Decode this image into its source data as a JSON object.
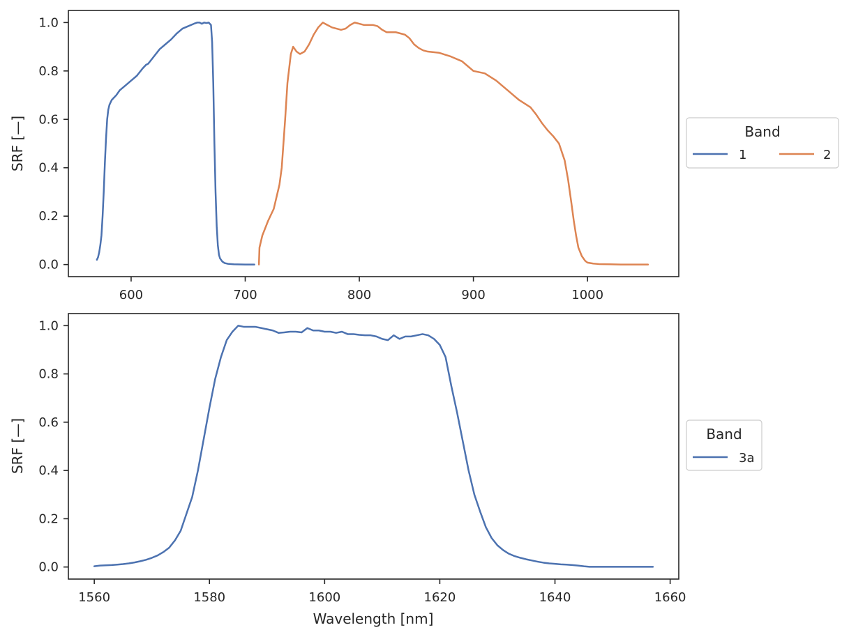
{
  "colors": {
    "band_1": "#4c72b0",
    "band_2": "#dd8452",
    "band_3a": "#4c72b0",
    "axes": "#262626"
  },
  "chart_data": [
    {
      "type": "line",
      "xlabel": "",
      "ylabel": "SRF [—]",
      "xlim": [
        545,
        1080
      ],
      "ylim": [
        -0.05,
        1.05
      ],
      "xticks": [
        600,
        700,
        800,
        900,
        1000
      ],
      "yticks": [
        0.0,
        0.2,
        0.4,
        0.6,
        0.8,
        1.0
      ],
      "legend": {
        "title": "Band",
        "placement": "right",
        "columns": 2
      },
      "grid": false,
      "series": [
        {
          "name": "1",
          "color": "#4c72b0",
          "x": [
            570,
            571,
            572,
            573,
            574,
            575,
            576,
            577,
            578,
            579,
            580,
            581,
            582,
            583,
            584,
            585,
            587,
            590,
            595,
            600,
            605,
            610,
            613,
            615,
            620,
            625,
            630,
            635,
            640,
            645,
            650,
            655,
            658,
            660,
            662,
            664,
            666,
            668,
            670,
            671,
            672,
            673,
            674,
            675,
            676,
            677,
            678,
            680,
            682,
            685,
            690,
            700,
            708
          ],
          "y": [
            0.02,
            0.03,
            0.05,
            0.08,
            0.12,
            0.2,
            0.3,
            0.42,
            0.52,
            0.6,
            0.64,
            0.66,
            0.67,
            0.68,
            0.685,
            0.69,
            0.7,
            0.72,
            0.74,
            0.76,
            0.78,
            0.81,
            0.825,
            0.83,
            0.86,
            0.89,
            0.91,
            0.93,
            0.955,
            0.975,
            0.985,
            0.995,
            1.0,
            1.0,
            0.995,
            1.0,
            0.998,
            1.0,
            0.99,
            0.92,
            0.75,
            0.5,
            0.3,
            0.16,
            0.08,
            0.04,
            0.025,
            0.012,
            0.006,
            0.003,
            0.001,
            0.0,
            0.0
          ]
        },
        {
          "name": "2",
          "color": "#dd8452",
          "x": [
            712,
            712.5,
            715,
            720,
            725,
            730,
            732,
            735,
            737,
            740,
            742,
            745,
            748,
            752,
            756,
            760,
            764,
            768,
            772,
            776,
            780,
            784,
            788,
            792,
            796,
            800,
            804,
            808,
            812,
            816,
            820,
            824,
            828,
            832,
            836,
            840,
            844,
            848,
            852,
            856,
            860,
            870,
            880,
            890,
            895,
            900,
            910,
            920,
            930,
            935,
            940,
            945,
            950,
            955,
            960,
            965,
            970,
            975,
            980,
            983,
            986,
            988,
            990,
            992,
            995,
            998,
            1000,
            1005,
            1010,
            1020,
            1030,
            1040,
            1053
          ],
          "y": [
            0.0,
            0.07,
            0.12,
            0.18,
            0.23,
            0.33,
            0.4,
            0.6,
            0.75,
            0.87,
            0.9,
            0.88,
            0.87,
            0.88,
            0.91,
            0.95,
            0.98,
            1.0,
            0.99,
            0.98,
            0.975,
            0.97,
            0.975,
            0.99,
            1.0,
            0.995,
            0.99,
            0.99,
            0.99,
            0.985,
            0.97,
            0.96,
            0.96,
            0.96,
            0.955,
            0.95,
            0.935,
            0.91,
            0.895,
            0.885,
            0.88,
            0.875,
            0.86,
            0.84,
            0.82,
            0.8,
            0.79,
            0.76,
            0.72,
            0.7,
            0.68,
            0.665,
            0.65,
            0.62,
            0.585,
            0.555,
            0.53,
            0.5,
            0.43,
            0.35,
            0.25,
            0.18,
            0.12,
            0.07,
            0.035,
            0.015,
            0.008,
            0.004,
            0.002,
            0.001,
            0.0,
            0.0,
            0.0
          ]
        }
      ]
    },
    {
      "type": "line",
      "xlabel": "Wavelength [nm]",
      "ylabel": "SRF [—]",
      "xlim": [
        1555.5,
        1661.5
      ],
      "ylim": [
        -0.05,
        1.05
      ],
      "xticks": [
        1560,
        1580,
        1600,
        1620,
        1640,
        1660
      ],
      "yticks": [
        0.0,
        0.2,
        0.4,
        0.6,
        0.8,
        1.0
      ],
      "legend": {
        "title": "Band",
        "placement": "right",
        "columns": 1
      },
      "grid": false,
      "series": [
        {
          "name": "3a",
          "color": "#4c72b0",
          "x": [
            1560,
            1561,
            1562,
            1563,
            1564,
            1565,
            1566,
            1567,
            1568,
            1569,
            1570,
            1571,
            1572,
            1573,
            1574,
            1575,
            1576,
            1577,
            1578,
            1579,
            1580,
            1581,
            1582,
            1583,
            1584,
            1585,
            1586,
            1587,
            1588,
            1589,
            1590,
            1591,
            1592,
            1593,
            1594,
            1595,
            1596,
            1597,
            1598,
            1599,
            1600,
            1601,
            1602,
            1603,
            1604,
            1605,
            1606,
            1607,
            1608,
            1609,
            1610,
            1611,
            1612,
            1613,
            1614,
            1615,
            1616,
            1617,
            1618,
            1619,
            1620,
            1621,
            1622,
            1623,
            1624,
            1625,
            1626,
            1627,
            1628,
            1629,
            1630,
            1631,
            1632,
            1633,
            1634,
            1635,
            1636,
            1637,
            1638,
            1639,
            1640,
            1641,
            1642,
            1643,
            1644,
            1645,
            1646,
            1647,
            1648,
            1649,
            1650,
            1651,
            1652,
            1653,
            1654,
            1655,
            1656,
            1657
          ],
          "y": [
            0.003,
            0.006,
            0.007,
            0.008,
            0.01,
            0.012,
            0.015,
            0.019,
            0.024,
            0.03,
            0.038,
            0.048,
            0.062,
            0.08,
            0.11,
            0.15,
            0.22,
            0.29,
            0.4,
            0.53,
            0.66,
            0.78,
            0.87,
            0.94,
            0.975,
            1.0,
            0.995,
            0.995,
            0.995,
            0.99,
            0.985,
            0.98,
            0.97,
            0.972,
            0.975,
            0.975,
            0.972,
            0.99,
            0.98,
            0.98,
            0.975,
            0.975,
            0.97,
            0.975,
            0.965,
            0.965,
            0.962,
            0.96,
            0.96,
            0.955,
            0.945,
            0.94,
            0.96,
            0.945,
            0.955,
            0.955,
            0.96,
            0.965,
            0.96,
            0.945,
            0.92,
            0.87,
            0.75,
            0.64,
            0.52,
            0.4,
            0.3,
            0.23,
            0.165,
            0.12,
            0.09,
            0.07,
            0.055,
            0.045,
            0.038,
            0.032,
            0.027,
            0.022,
            0.018,
            0.015,
            0.013,
            0.011,
            0.01,
            0.008,
            0.006,
            0.003,
            0.001,
            0.001,
            0.001,
            0.001,
            0.001,
            0.001,
            0.001,
            0.001,
            0.001,
            0.001,
            0.001,
            0.001
          ]
        }
      ]
    }
  ]
}
